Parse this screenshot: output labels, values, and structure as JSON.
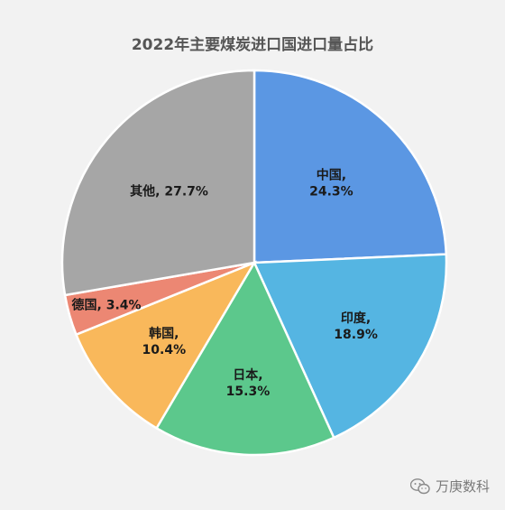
{
  "chart_data": {
    "type": "pie",
    "title": "2022年主要煤炭进口国进口量占比",
    "slices": [
      {
        "name": "中国",
        "value": 24.3,
        "label_line1": "中国,",
        "label_line2": "24.3%",
        "color": "#5b97e3"
      },
      {
        "name": "印度",
        "value": 18.9,
        "label_line1": "印度,",
        "label_line2": "18.9%",
        "color": "#55b5e2"
      },
      {
        "name": "日本",
        "value": 15.3,
        "label_line1": "日本,",
        "label_line2": "15.3%",
        "color": "#5cc88c"
      },
      {
        "name": "韩国",
        "value": 10.4,
        "label_line1": "韩国,",
        "label_line2": "10.4%",
        "color": "#f9b85b"
      },
      {
        "name": "德国",
        "value": 3.4,
        "label_line1": "德国, 3.4%",
        "label_line2": "",
        "color": "#ec8773"
      },
      {
        "name": "其他",
        "value": 27.7,
        "label_line1": "其他, 27.7%",
        "label_line2": "",
        "color": "#a6a6a6"
      }
    ],
    "legend": "none"
  },
  "watermark": {
    "text": "万庚数科",
    "icon": "wechat-icon"
  }
}
